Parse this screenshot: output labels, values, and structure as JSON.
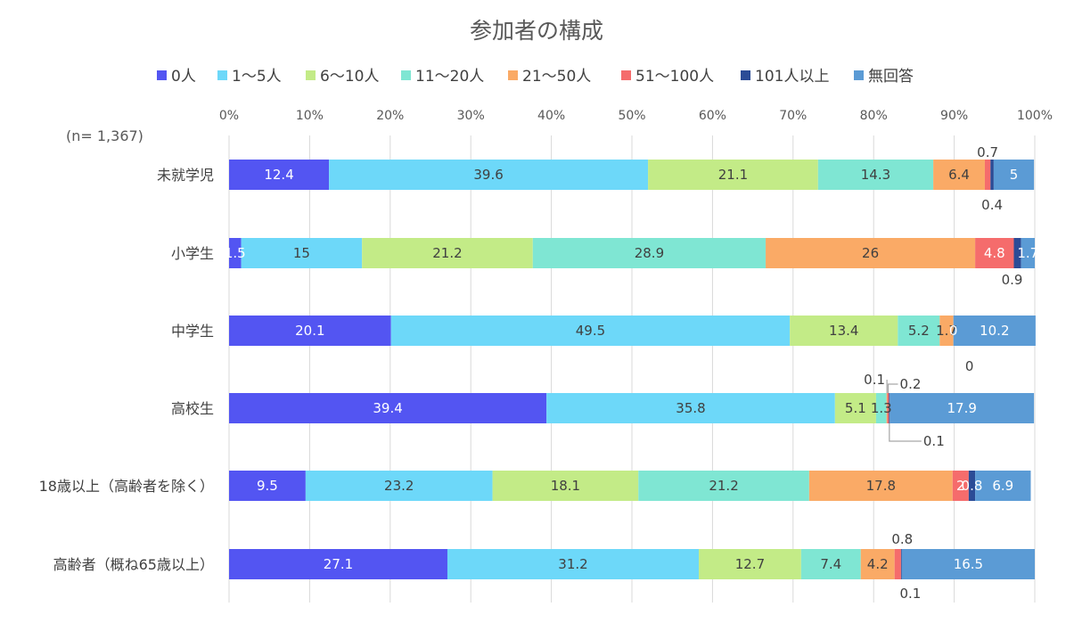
{
  "chart_data": {
    "type": "bar",
    "orientation": "horizontal",
    "stacked": true,
    "title": "参加者の構成",
    "note": "(n= 1,367)",
    "xlim": [
      0,
      100
    ],
    "x_ticks": [
      "0%",
      "10%",
      "20%",
      "30%",
      "40%",
      "50%",
      "60%",
      "70%",
      "80%",
      "90%",
      "100%"
    ],
    "grid": true,
    "legend_position": "top",
    "categories": [
      "未就学児",
      "小学生",
      "中学生",
      "高校生",
      "18歳以上（高齢者を除く）",
      "高齢者（概ね65歳以上）"
    ],
    "series": [
      {
        "name": "0人",
        "color": "#5355F2",
        "values": [
          12.4,
          1.5,
          20.1,
          39.4,
          9.5,
          27.1
        ]
      },
      {
        "name": "1～5人",
        "color": "#6DD8F9",
        "values": [
          39.6,
          15,
          49.5,
          35.8,
          23.2,
          31.2
        ]
      },
      {
        "name": "6～10人",
        "color": "#C3EB87",
        "values": [
          21.1,
          21.2,
          13.4,
          5.1,
          18.1,
          12.7
        ]
      },
      {
        "name": "11～20人",
        "color": "#7FE6D3",
        "values": [
          14.3,
          28.9,
          5.2,
          1.3,
          21.2,
          7.4
        ]
      },
      {
        "name": "21～50人",
        "color": "#FAAA66",
        "values": [
          6.4,
          26,
          1.7,
          0.1,
          17.8,
          4.2
        ]
      },
      {
        "name": "51～100人",
        "color": "#F56C6C",
        "values": [
          0.7,
          4.8,
          0,
          0.2,
          2.0,
          0.8
        ]
      },
      {
        "name": "101人以上",
        "color": "#2B4C96",
        "values": [
          0.4,
          0.9,
          0,
          0.1,
          0.8,
          0.1
        ]
      },
      {
        "name": "無回答",
        "color": "#5B9BD5",
        "values": [
          5,
          1.7,
          10.2,
          17.9,
          6.9,
          16.5
        ]
      }
    ]
  }
}
